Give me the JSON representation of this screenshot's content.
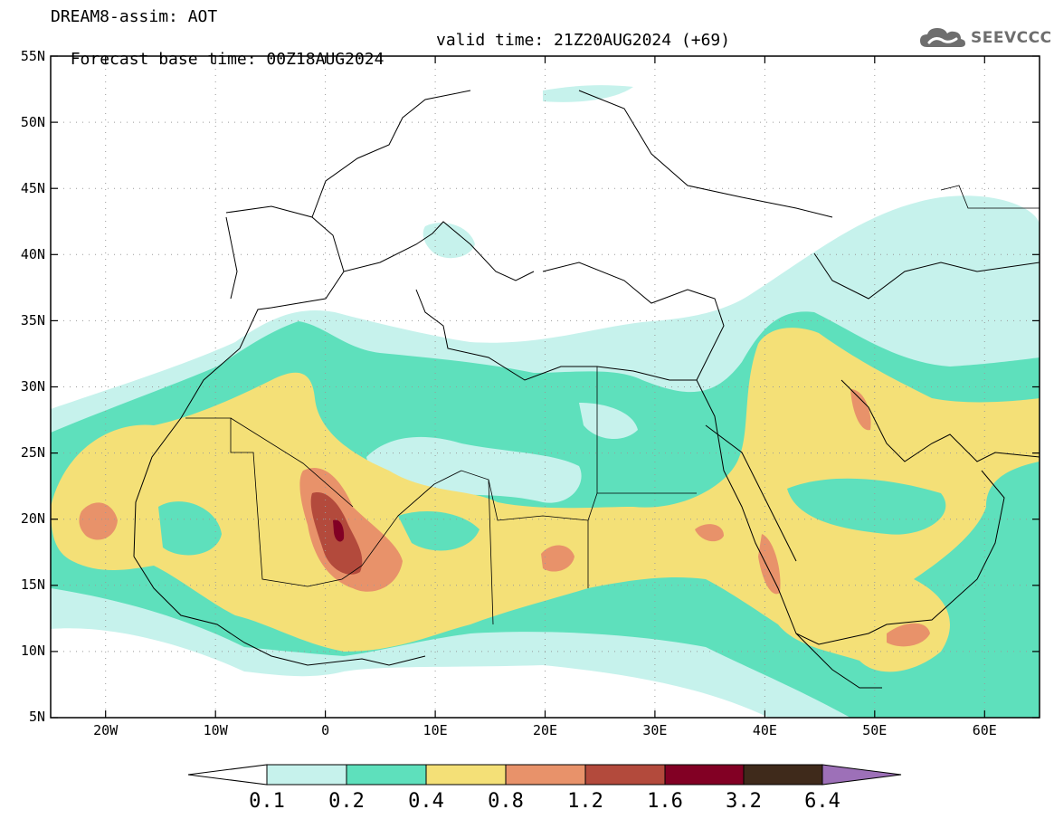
{
  "header": {
    "title": "DREAM8-assim: AOT",
    "base_time": "Forecast base time: 00Z18AUG2024",
    "valid_time": "valid time: 21Z20AUG2024 (+69)"
  },
  "logo": {
    "text": "SEEVCCC",
    "icon": "cloud-logo-icon"
  },
  "map": {
    "lat_labels": [
      "55N",
      "50N",
      "45N",
      "40N",
      "35N",
      "30N",
      "25N",
      "20N",
      "15N",
      "10N",
      "5N"
    ],
    "lon_labels": [
      "20W",
      "10W",
      "0",
      "10E",
      "20E",
      "30E",
      "40E",
      "50E",
      "60E"
    ]
  },
  "legend": {
    "levels": [
      "0.1",
      "0.2",
      "0.4",
      "0.8",
      "1.2",
      "1.6",
      "3.2",
      "6.4"
    ],
    "colors": [
      "#ffffff",
      "#c6f2ec",
      "#5ee0bc",
      "#f4e077",
      "#e8926a",
      "#b34a3c",
      "#820024",
      "#3f2a1b",
      "#9d70b8"
    ]
  }
}
